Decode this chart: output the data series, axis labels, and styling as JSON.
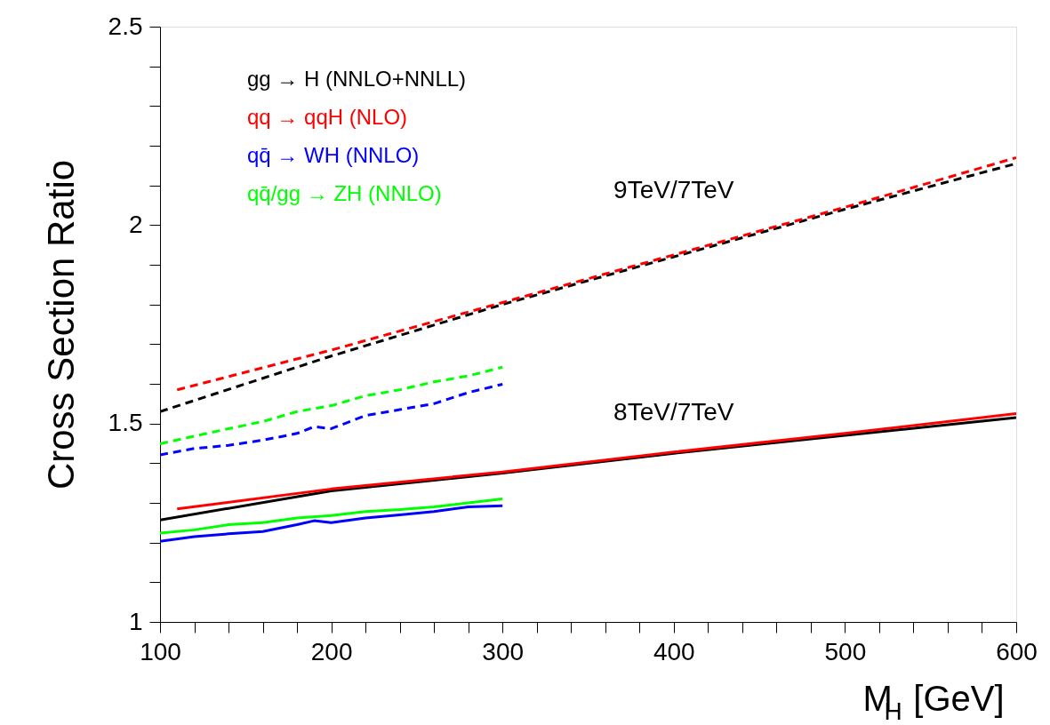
{
  "chart_data": {
    "type": "line",
    "ylabel": "Cross Section Ratio",
    "xlabel": "M$_{H}$ [GeV]",
    "xlim": [
      100,
      600
    ],
    "ylim": [
      1,
      2.5
    ],
    "xticks": [
      100,
      {
        "value": 120,
        "label": null
      },
      {
        "value": 140,
        "label": null
      },
      {
        "value": 160,
        "label": null
      },
      {
        "value": 180,
        "label": null
      },
      200,
      {
        "value": 220,
        "label": null
      },
      {
        "value": 240,
        "label": null
      },
      {
        "value": 260,
        "label": null
      },
      {
        "value": 280,
        "label": null
      },
      300,
      {
        "value": 320,
        "label": null
      },
      {
        "value": 340,
        "label": null
      },
      {
        "value": 360,
        "label": null
      },
      {
        "value": 380,
        "label": null
      },
      400,
      {
        "value": 420,
        "label": null
      },
      {
        "value": 440,
        "label": null
      },
      {
        "value": 460,
        "label": null
      },
      {
        "value": 480,
        "label": null
      },
      500,
      {
        "value": 520,
        "label": null
      },
      {
        "value": 540,
        "label": null
      },
      {
        "value": 560,
        "label": null
      },
      {
        "value": 580,
        "label": null
      },
      600
    ],
    "yticks": [
      1,
      {
        "value": 1.1,
        "label": null
      },
      {
        "value": 1.2,
        "label": null
      },
      {
        "value": 1.3,
        "label": null
      },
      {
        "value": 1.4,
        "label": null
      },
      1.5,
      {
        "value": 1.6,
        "label": null
      },
      {
        "value": 1.7,
        "label": null
      },
      {
        "value": 1.8,
        "label": null
      },
      {
        "value": 1.9,
        "label": null
      },
      2,
      {
        "value": 2.1,
        "label": null
      },
      {
        "value": 2.2,
        "label": null
      },
      {
        "value": 2.3,
        "label": null
      },
      {
        "value": 2.4,
        "label": null
      },
      2.5
    ],
    "grid": false,
    "legend": "top left",
    "marker": "none",
    "series": [
      {
        "name": "gg → H (NNLO+NNLL)",
        "color": "#000000",
        "line_style": "dashed",
        "x": [
          100,
          200,
          300,
          400,
          500,
          600
        ],
        "values": [
          1.53,
          1.67,
          1.8,
          1.92,
          2.04,
          2.155
        ]
      },
      {
        "name": "qq → qqH (NLO)",
        "color": "#ff0000",
        "line_style": "dashed",
        "x": [
          110,
          200,
          300,
          400,
          500,
          600
        ],
        "values": [
          1.585,
          1.685,
          1.805,
          1.925,
          2.045,
          2.17
        ]
      },
      {
        "name": "qq̄ → WH (NNLO)",
        "color": "#0000ff",
        "line_style": "dashed",
        "x": [
          100,
          120,
          140,
          160,
          180,
          190,
          200,
          220,
          240,
          260,
          280,
          300
        ],
        "values": [
          1.421,
          1.437,
          1.445,
          1.458,
          1.475,
          1.492,
          1.487,
          1.52,
          1.535,
          1.55,
          1.578,
          1.599
        ]
      },
      {
        "name": "qq̄/gg → ZH (NNLO)",
        "color": "#00ff00",
        "line_style": "dashed",
        "x": [
          100,
          120,
          140,
          160,
          180,
          200,
          220,
          240,
          260,
          280,
          300
        ],
        "values": [
          1.449,
          1.468,
          1.487,
          1.505,
          1.53,
          1.545,
          1.57,
          1.585,
          1.605,
          1.62,
          1.642
        ]
      },
      {
        "color": "#000000",
        "line_style": "solid",
        "x": [
          100,
          200,
          300,
          400,
          500,
          600
        ],
        "values": [
          1.257,
          1.33,
          1.375,
          1.425,
          1.47,
          1.515
        ]
      },
      {
        "color": "#ff0000",
        "line_style": "solid",
        "x": [
          110,
          200,
          300,
          400,
          500,
          600
        ],
        "values": [
          1.285,
          1.335,
          1.378,
          1.428,
          1.475,
          1.525
        ]
      },
      {
        "color": "#0000ff",
        "line_style": "solid",
        "x": [
          100,
          120,
          140,
          160,
          180,
          190,
          200,
          220,
          240,
          260,
          280,
          300
        ],
        "values": [
          1.203,
          1.215,
          1.222,
          1.228,
          1.245,
          1.255,
          1.25,
          1.262,
          1.27,
          1.278,
          1.29,
          1.293
        ]
      },
      {
        "color": "#00ff00",
        "line_style": "solid",
        "x": [
          100,
          120,
          140,
          160,
          180,
          200,
          220,
          240,
          260,
          280,
          300
        ],
        "values": [
          1.224,
          1.232,
          1.245,
          1.25,
          1.262,
          1.268,
          1.278,
          1.283,
          1.29,
          1.3,
          1.31
        ]
      }
    ],
    "annotations": [
      "9TeV/7TeV",
      "8TeV/7TeV"
    ]
  }
}
